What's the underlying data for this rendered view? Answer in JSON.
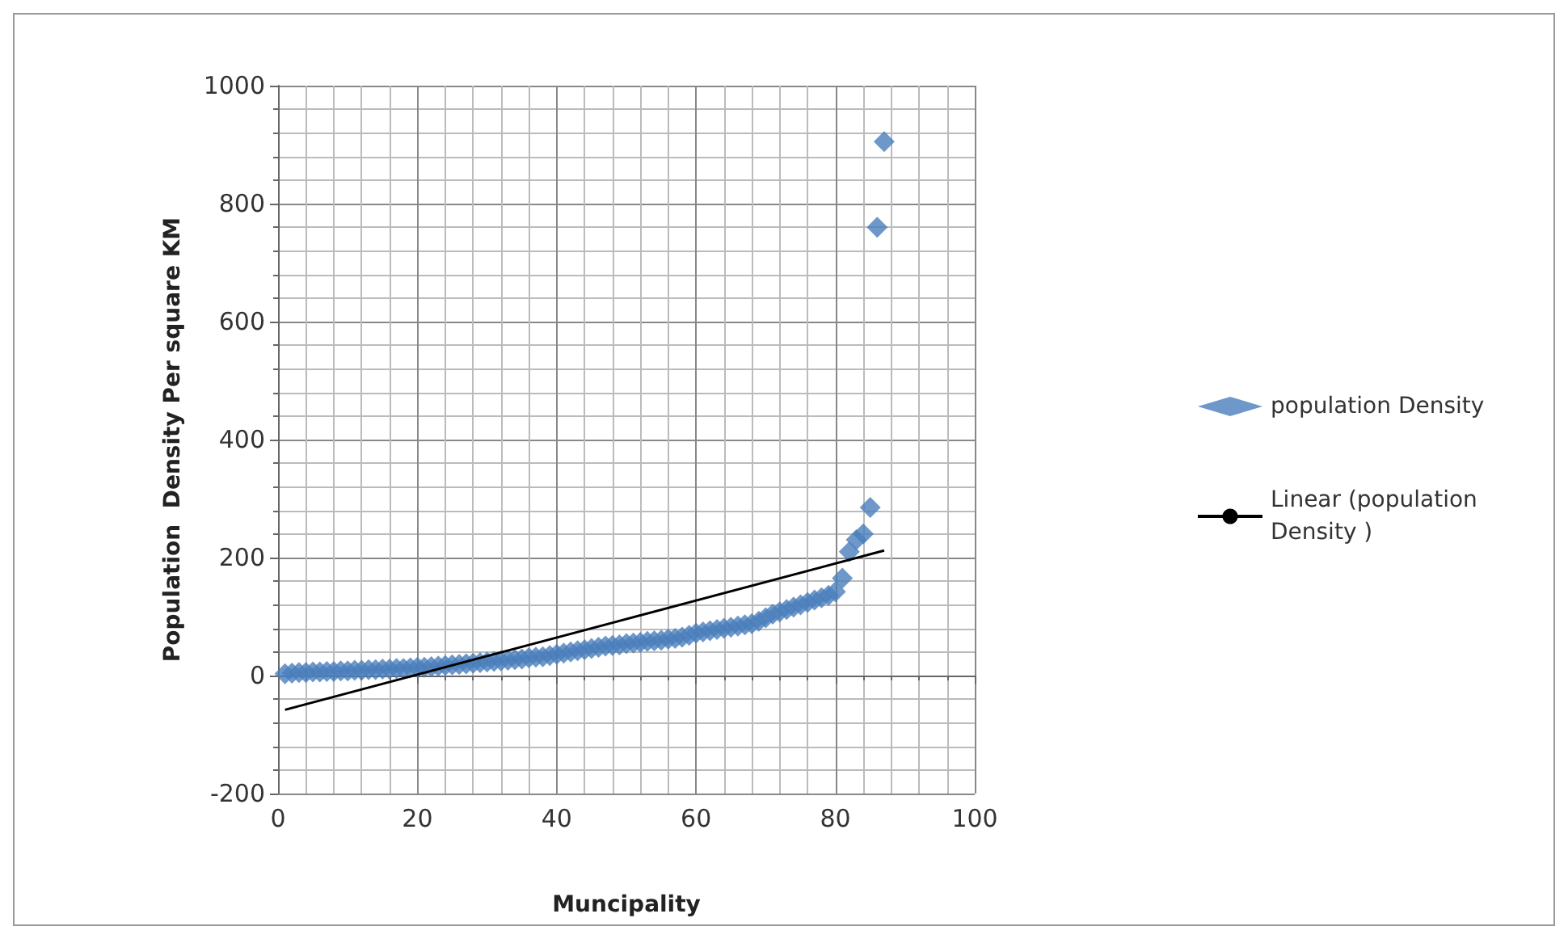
{
  "chart_data": {
    "type": "scatter",
    "xlabel": "Muncipality",
    "ylabel": "Population  Density Per square KM",
    "xlim": [
      0,
      100
    ],
    "xticks": [
      0,
      20,
      40,
      60,
      80,
      100
    ],
    "ylim": [
      -200,
      1000
    ],
    "yticks": [
      -200,
      0,
      200,
      400,
      600,
      800,
      1000
    ],
    "grid": true,
    "legend": "right",
    "marker": "diamond",
    "series": [
      {
        "name": "population Density",
        "color": "#4a7ebb",
        "x": [
          1,
          2,
          3,
          4,
          5,
          6,
          7,
          8,
          9,
          10,
          11,
          12,
          13,
          14,
          15,
          16,
          17,
          18,
          19,
          20,
          21,
          22,
          23,
          24,
          25,
          26,
          27,
          28,
          29,
          30,
          31,
          32,
          33,
          34,
          35,
          36,
          37,
          38,
          39,
          40,
          41,
          42,
          43,
          44,
          45,
          46,
          47,
          48,
          49,
          50,
          51,
          52,
          53,
          54,
          55,
          56,
          57,
          58,
          59,
          60,
          61,
          62,
          63,
          64,
          65,
          66,
          67,
          68,
          69,
          70,
          71,
          72,
          73,
          74,
          75,
          76,
          77,
          78,
          79,
          80,
          81,
          82,
          83,
          84,
          85,
          86,
          87
        ],
        "values": [
          3,
          4,
          5,
          5,
          6,
          6,
          7,
          7,
          8,
          8,
          9,
          9,
          10,
          10,
          11,
          11,
          12,
          12,
          13,
          14,
          14,
          15,
          16,
          17,
          18,
          19,
          20,
          21,
          22,
          23,
          24,
          25,
          26,
          27,
          28,
          30,
          31,
          32,
          34,
          36,
          38,
          40,
          42,
          44,
          46,
          48,
          50,
          51,
          52,
          54,
          55,
          56,
          58,
          59,
          60,
          62,
          63,
          65,
          68,
          72,
          74,
          76,
          78,
          80,
          82,
          84,
          86,
          88,
          92,
          98,
          104,
          108,
          112,
          116,
          120,
          124,
          128,
          132,
          136,
          142,
          165,
          210,
          230,
          240,
          285,
          760,
          905
        ]
      },
      {
        "name": "Linear (population Density )",
        "type": "line",
        "color": "#000000",
        "marker": "none",
        "x": [
          1,
          87
        ],
        "values": [
          -58,
          212
        ]
      }
    ]
  }
}
